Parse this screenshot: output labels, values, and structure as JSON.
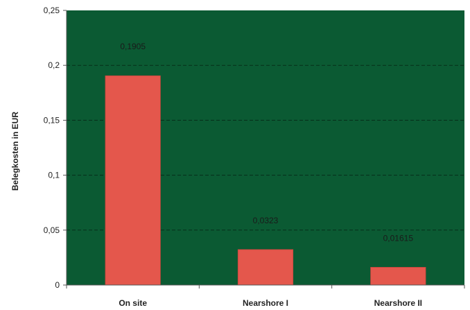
{
  "chart_data": {
    "type": "bar",
    "categories": [
      "On site",
      "Nearshore I",
      "Nearshore II"
    ],
    "values": [
      0.1905,
      0.0323,
      0.01615
    ],
    "data_labels": [
      "0,1905",
      "0,0323",
      "0,01615"
    ],
    "ylabel": "Belegkosten in EUR",
    "xlabel": "",
    "ylim": [
      0,
      0.25
    ],
    "yticks": [
      0,
      0.05,
      0.1,
      0.15,
      0.2,
      0.25
    ],
    "ytick_labels": [
      "0",
      "0,05",
      "0,1",
      "0,15",
      "0,2",
      "0,25"
    ],
    "grid": "horizontal dashed",
    "legend": "none",
    "colors": {
      "plot_background": "#0b5a33",
      "bar": "#e4574c",
      "bar_border": "#c8463c",
      "grid": "#062e1a",
      "axis": "#555555"
    }
  }
}
